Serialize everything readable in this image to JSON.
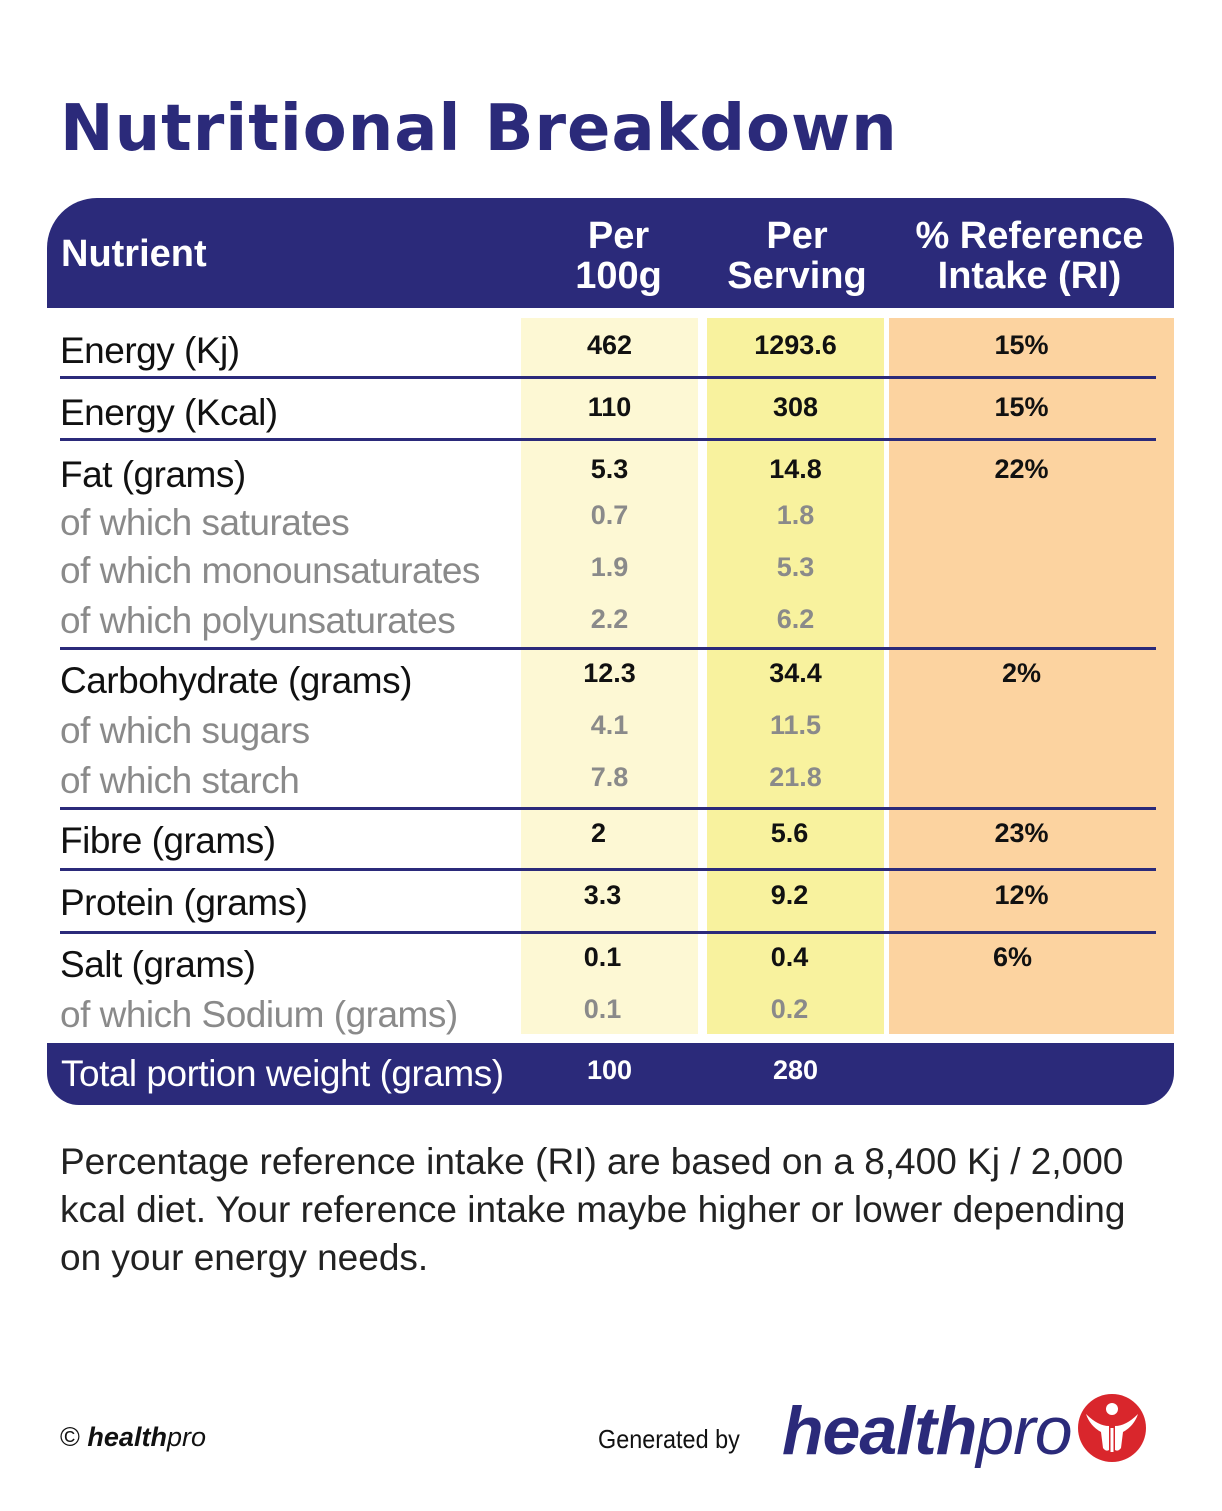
{
  "title": "Nutritional Breakdown",
  "header": {
    "nutrient": "Nutrient",
    "per100_line1": "Per",
    "per100_line2": "100g",
    "perserv_line1": "Per",
    "perserv_line2": "Serving",
    "ri_line1": "% Reference",
    "ri_line2": "Intake (RI)"
  },
  "rows": [
    {
      "label": "Energy (Kj)",
      "per100": "462",
      "perserv": "1293.6",
      "ri": "15%"
    },
    {
      "label": "Energy (Kcal)",
      "per100": "110",
      "perserv": "308",
      "ri": "15%"
    },
    {
      "label": "Fat (grams)",
      "per100": "5.3",
      "perserv": "14.8",
      "ri": "22%"
    },
    {
      "label": "of which saturates",
      "per100": "0.7",
      "perserv": "1.8"
    },
    {
      "label": "of which monounsaturates",
      "per100": "1.9",
      "perserv": "5.3"
    },
    {
      "label": "of which polyunsaturates",
      "per100": "2.2",
      "perserv": "6.2"
    },
    {
      "label": "Carbohydrate (grams)",
      "per100": "12.3",
      "perserv": "34.4",
      "ri": "2%"
    },
    {
      "label": "of which sugars",
      "per100": "4.1",
      "perserv": "11.5"
    },
    {
      "label": "of which starch",
      "per100": "7.8",
      "perserv": "21.8"
    },
    {
      "label": "Fibre (grams)",
      "per100": "2",
      "perserv": "5.6",
      "ri": "23%"
    },
    {
      "label": "Protein (grams)",
      "per100": "3.3",
      "perserv": "9.2",
      "ri": "12%"
    },
    {
      "label": "Salt (grams)",
      "per100": "0.1",
      "perserv": "0.4",
      "ri": "6%"
    },
    {
      "label": "of which Sodium (grams)",
      "per100": "0.1",
      "perserv": "0.2"
    }
  ],
  "total": {
    "label": "Total portion weight (grams)",
    "per100": "100",
    "perserv": "280"
  },
  "note": "Percentage reference intake (RI) are based on a 8,400 Kj / 2,000 kcal diet. Your reference intake maybe higher or lower depending on your energy needs.",
  "footer": {
    "copyright_symbol": "©",
    "copyright_brand_bold": "health",
    "copyright_brand_light": "pro",
    "generated_by": "Generated by",
    "brand_bold": "health",
    "brand_light": "pro"
  },
  "colors": {
    "navy": "#2b2a7a",
    "per100_bg": "#fdf8d4",
    "perserv_bg": "#f8f29e",
    "ri_bg": "#fcd3a0",
    "logo_red": "#d9262c"
  }
}
